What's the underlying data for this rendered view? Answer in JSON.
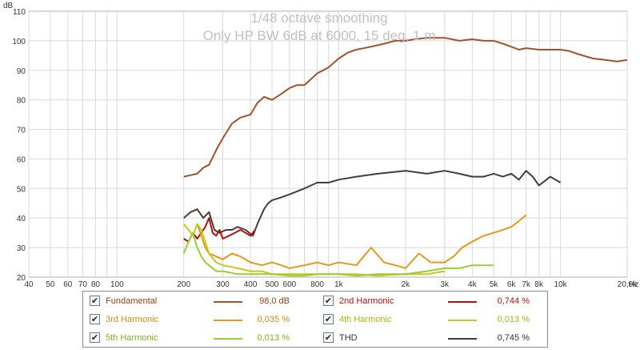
{
  "chart_data": {
    "type": "line",
    "title": "1/48 octave smoothing",
    "subtitle": "Only HP BW 6dB at 6000, 15 deg, 1 m",
    "ylabel": "dB",
    "xlabel_unit": "Hz",
    "x_scale": "log",
    "xlim": [
      40,
      20000
    ],
    "ylim": [
      20,
      110
    ],
    "grid": true,
    "y_ticks": [
      "110",
      "100",
      "90",
      "80",
      "70",
      "60",
      "50",
      "40",
      "30",
      "20"
    ],
    "y_tick_values": [
      110,
      100,
      90,
      80,
      70,
      60,
      50,
      40,
      30,
      20
    ],
    "x_ticks": [
      "40",
      "50",
      "60",
      "70",
      "80",
      "100",
      "200",
      "300",
      "400",
      "500",
      "600",
      "800",
      "1k",
      "2k",
      "3k",
      "4k",
      "5k",
      "6k",
      "7k",
      "8k",
      "10k",
      "20,0k"
    ],
    "x_tick_values": [
      40,
      50,
      60,
      70,
      80,
      100,
      200,
      300,
      400,
      500,
      600,
      800,
      1000,
      2000,
      3000,
      4000,
      5000,
      6000,
      7000,
      8000,
      10000,
      20000
    ],
    "series": [
      {
        "name": "Fundamental",
        "color": "#a0522d",
        "x": [
          200,
          215,
          230,
          245,
          260,
          280,
          300,
          330,
          360,
          400,
          430,
          460,
          500,
          550,
          600,
          650,
          700,
          750,
          800,
          850,
          900,
          1000,
          1100,
          1200,
          1400,
          1600,
          1800,
          2000,
          2200,
          2500,
          3000,
          3500,
          4000,
          4500,
          5000,
          5500,
          6000,
          6500,
          7000,
          8000,
          9000,
          10000,
          11000,
          12000,
          14000,
          16000,
          18000,
          20000
        ],
        "y": [
          54,
          54.5,
          55,
          57,
          58,
          63,
          67,
          72,
          74,
          75,
          79,
          81,
          80,
          82,
          84,
          85,
          85,
          87,
          89,
          90,
          91,
          94,
          96,
          97,
          98,
          99,
          100,
          100,
          100.5,
          101,
          101,
          100,
          100.5,
          100,
          100,
          99,
          98,
          97,
          97.5,
          97,
          97,
          97,
          96.5,
          95.5,
          94,
          93.5,
          93,
          93.5
        ]
      },
      {
        "name": "THD",
        "color": "#4a3a3a",
        "x": [
          200,
          215,
          230,
          245,
          260,
          275,
          290,
          310,
          330,
          350,
          380,
          410,
          430,
          460,
          480,
          500,
          550,
          600,
          700,
          800,
          900,
          1000,
          1200,
          1500,
          2000,
          2500,
          3000,
          3500,
          4000,
          4500,
          5000,
          5500,
          6000,
          6500,
          7000,
          7500,
          8000,
          9000,
          10000
        ],
        "y": [
          40,
          42,
          43,
          40,
          42,
          36,
          35,
          36,
          36,
          37,
          36,
          34,
          38,
          43,
          45,
          46,
          47,
          48,
          50,
          52,
          52,
          53,
          54,
          55,
          56,
          55,
          56,
          55,
          54,
          54,
          55,
          54,
          55,
          53,
          56,
          54,
          51,
          54,
          52
        ]
      },
      {
        "name": "2nd Harmonic",
        "color": "#b01010",
        "x": [
          200,
          210,
          220,
          230,
          240,
          250,
          260,
          270,
          280,
          290,
          300,
          320,
          340,
          360,
          380,
          400,
          420
        ],
        "y": [
          33,
          32,
          35,
          33,
          35,
          37,
          40,
          35,
          34,
          36,
          33,
          34,
          35,
          36,
          35,
          34,
          36
        ]
      },
      {
        "name": "3rd Harmonic",
        "color": "#e09a1c",
        "x": [
          230,
          240,
          250,
          260,
          280,
          300,
          330,
          360,
          400,
          450,
          500,
          550,
          600,
          700,
          800,
          900,
          1000,
          1200,
          1400,
          1600,
          1800,
          2000,
          2300,
          2600,
          3000,
          3300,
          3600,
          4000,
          4500,
          5000,
          5500,
          6000,
          6500,
          7000
        ],
        "y": [
          38,
          34,
          30,
          28,
          27,
          26,
          28,
          27,
          25,
          24,
          25,
          24,
          23,
          24,
          25,
          24,
          25,
          24,
          30,
          25,
          24,
          23,
          28,
          25,
          25,
          27,
          30,
          32,
          34,
          35,
          36,
          37,
          39,
          41
        ]
      },
      {
        "name": "4th Harmonic",
        "color": "#c8c81e",
        "x": [
          200,
          210,
          220,
          230,
          240,
          250,
          260,
          280,
          300,
          350,
          400,
          450,
          500,
          600,
          700,
          800,
          1000,
          1200,
          1500,
          2000,
          2500,
          3000
        ],
        "y": [
          38,
          36,
          34,
          38,
          36,
          32,
          28,
          25,
          24,
          23,
          22,
          22,
          21,
          21,
          21,
          21,
          21,
          21,
          20.5,
          21,
          21,
          22
        ]
      },
      {
        "name": "5th Harmonic",
        "color": "#9acd32",
        "x": [
          200,
          210,
          220,
          230,
          240,
          250,
          260,
          280,
          300,
          350,
          400,
          450,
          500,
          600,
          700,
          800,
          1000,
          1200,
          1500,
          2000,
          2500,
          3000,
          3500,
          4000,
          4500,
          5000
        ],
        "y": [
          28,
          32,
          35,
          30,
          27,
          25,
          24,
          22,
          22,
          21,
          21,
          21,
          21,
          20.5,
          20.5,
          21,
          21,
          20.5,
          21,
          21,
          22,
          23,
          23,
          24,
          24,
          24
        ]
      }
    ]
  },
  "legend": [
    {
      "name": "Fundamental",
      "value": "98,0 dB",
      "color": "#a0522d",
      "checked": "✔"
    },
    {
      "name": "2nd Harmonic",
      "value": "0,744 %",
      "color": "#b01010",
      "checked": "✔"
    },
    {
      "name": "3rd Harmonic",
      "value": "0,035 %",
      "color": "#e09a1c",
      "checked": "✔"
    },
    {
      "name": "4th Harmonic",
      "value": "0,013 %",
      "color": "#c8c81e",
      "checked": "✔"
    },
    {
      "name": "5th Harmonic",
      "value": "0,013 %",
      "color": "#9acd32",
      "checked": "✔"
    },
    {
      "name": "THD",
      "value": "0,745 %",
      "color": "#4a3a3a",
      "checked": "✔"
    }
  ]
}
